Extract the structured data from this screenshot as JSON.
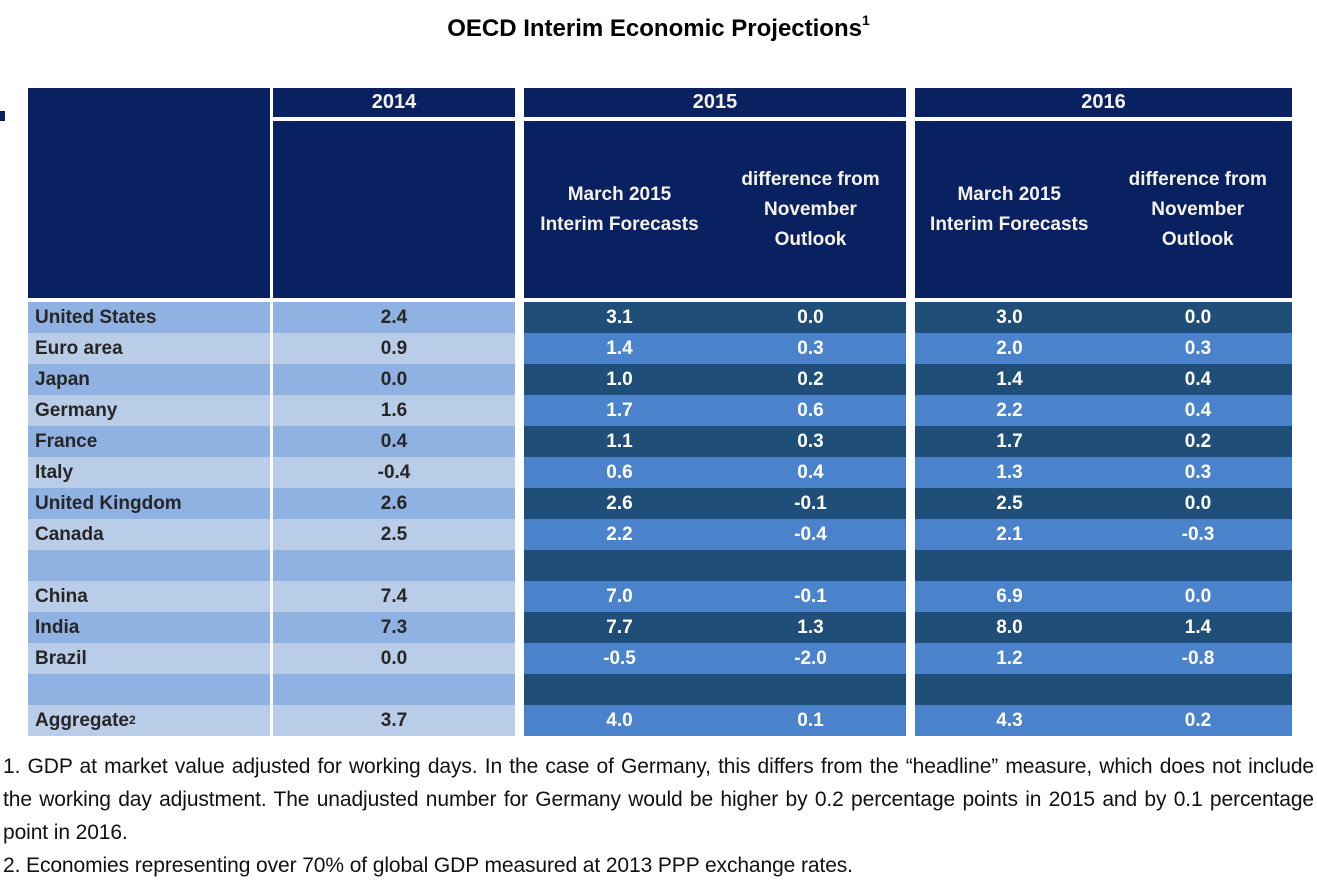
{
  "title": {
    "text": "OECD Interim Economic Projections",
    "superscript": "1"
  },
  "table": {
    "years": [
      "2014",
      "2015",
      "2016"
    ],
    "subheaders": {
      "forecasts": "March 2015 Interim Forecasts",
      "difference": "difference from November Outlook"
    },
    "rows": [
      {
        "label": "United States",
        "y2014": "2.4",
        "f2015": "3.1",
        "d2015": "0.0",
        "f2016": "3.0",
        "d2016": "0.0"
      },
      {
        "label": "Euro area",
        "y2014": "0.9",
        "f2015": "1.4",
        "d2015": "0.3",
        "f2016": "2.0",
        "d2016": "0.3"
      },
      {
        "label": "Japan",
        "y2014": "0.0",
        "f2015": "1.0",
        "d2015": "0.2",
        "f2016": "1.4",
        "d2016": "0.4"
      },
      {
        "label": "Germany",
        "y2014": "1.6",
        "f2015": "1.7",
        "d2015": "0.6",
        "f2016": "2.2",
        "d2016": "0.4"
      },
      {
        "label": "France",
        "y2014": "0.4",
        "f2015": "1.1",
        "d2015": "0.3",
        "f2016": "1.7",
        "d2016": "0.2"
      },
      {
        "label": "Italy",
        "y2014": "-0.4",
        "f2015": "0.6",
        "d2015": "0.4",
        "f2016": "1.3",
        "d2016": "0.3"
      },
      {
        "label": "United Kingdom",
        "y2014": "2.6",
        "f2015": "2.6",
        "d2015": "-0.1",
        "f2016": "2.5",
        "d2016": "0.0"
      },
      {
        "label": "Canada",
        "y2014": "2.5",
        "f2015": "2.2",
        "d2015": "-0.4",
        "f2016": "2.1",
        "d2016": "-0.3"
      },
      {
        "label": "",
        "y2014": "",
        "f2015": "",
        "d2015": "",
        "f2016": "",
        "d2016": ""
      },
      {
        "label": "China",
        "y2014": "7.4",
        "f2015": "7.0",
        "d2015": "-0.1",
        "f2016": "6.9",
        "d2016": "0.0"
      },
      {
        "label": "India",
        "y2014": "7.3",
        "f2015": "7.7",
        "d2015": "1.3",
        "f2016": "8.0",
        "d2016": "1.4"
      },
      {
        "label": "Brazil",
        "y2014": "0.0",
        "f2015": "-0.5",
        "d2015": "-2.0",
        "f2016": "1.2",
        "d2016": "-0.8"
      },
      {
        "label": "",
        "y2014": "",
        "f2015": "",
        "d2015": "",
        "f2016": "",
        "d2016": ""
      },
      {
        "label": "Aggregate",
        "label_sup": "2",
        "y2014": "3.7",
        "f2015": "4.0",
        "d2015": "0.1",
        "f2016": "4.3",
        "d2016": "0.2"
      }
    ]
  },
  "footnotes": [
    "1. GDP at market value adjusted for working days. In the case of Germany, this differs from the “headline” measure, which does not include the working day adjustment. The unadjusted number for Germany would be higher by 0.2 percentage points in 2015 and by 0.1 percentage point in 2016.",
    "2. Economies representing over 70% of global GDP measured at 2013 PPP exchange rates."
  ],
  "colors": {
    "header_navy": "#0A2161",
    "body_dark_blue": "#1F4E79",
    "body_medium_blue": "#4A82CC",
    "label_medium_blue": "#8FB2E2",
    "label_light_blue": "#B9CCE8",
    "header_text": "#F5F2E8",
    "number_text": "#FFFFFF",
    "label_text": "#262626"
  }
}
